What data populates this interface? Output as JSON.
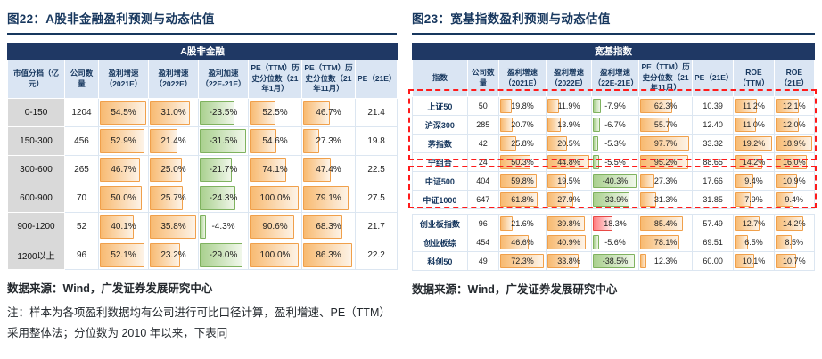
{
  "colors": {
    "navy": "#17375E",
    "table_title_bg": "#1F3864",
    "header_bg": "#DAE5F3",
    "rowhead_bg": "#D9D9D9",
    "bar_orange": "#F8BA71",
    "bar_green": "#A9D08E",
    "bar_red": "#FF7C80",
    "annotation_red": "#FF1A1A"
  },
  "left": {
    "figure_title": "图22：A股非金融盈利预测与动态估值",
    "table_title": "A股非金融",
    "columns": [
      {
        "label": "市值分档（亿元）",
        "type": "rowhead"
      },
      {
        "label": "公司数量",
        "type": "plain"
      },
      {
        "label": "盈利增速（2021E）",
        "type": "bar-orange"
      },
      {
        "label": "盈利增速（2022E）",
        "type": "bar-orange"
      },
      {
        "label": "盈利加速（22E-21E）",
        "type": "bar-accel"
      },
      {
        "label": "PE（TTM）历史分位数（21年1月）",
        "type": "bar-orange"
      },
      {
        "label": "PE（TTM）历史分位数（21年11月）",
        "type": "bar-orange"
      },
      {
        "label": "PE（21E）",
        "type": "plain"
      }
    ],
    "groups": [
      {
        "rows": [
          [
            "0-150",
            "1204",
            "54.5%",
            "31.0%",
            "-23.5%",
            "52.5%",
            "46.7%",
            "21.4"
          ],
          [
            "150-300",
            "456",
            "52.9%",
            "21.4%",
            "-31.5%",
            "54.6%",
            "27.3%",
            "19.8"
          ],
          [
            "300-600",
            "265",
            "46.7%",
            "25.0%",
            "-21.7%",
            "74.1%",
            "47.4%",
            "22.5"
          ],
          [
            "600-900",
            "70",
            "50.0%",
            "25.7%",
            "-24.3%",
            "100.0%",
            "79.1%",
            "27.5"
          ],
          [
            "900-1200",
            "52",
            "40.1%",
            "35.8%",
            "-4.3%",
            "90.6%",
            "68.3%",
            "21.7"
          ],
          [
            "1200以上",
            "96",
            "52.1%",
            "23.2%",
            "-29.0%",
            "100.0%",
            "86.3%",
            "22.2"
          ]
        ]
      }
    ],
    "source": "数据来源：Wind，广发证券发展研究中心",
    "note": "注：样本为各项盈利数据均有公司进行可比口径计算，盈利增速、PE（TTM）采用整体法；分位数为 2010 年以来，下表同"
  },
  "right": {
    "figure_title": "图23：宽基指数盈利预测与动态估值",
    "table_title": "宽基指数",
    "columns": [
      {
        "label": "指数",
        "type": "rowhead"
      },
      {
        "label": "公司数量",
        "type": "plain"
      },
      {
        "label": "盈利增速（2021E）",
        "type": "bar-orange"
      },
      {
        "label": "盈利增速（2022E）",
        "type": "bar-orange"
      },
      {
        "label": "盈利增速（22E-21E）",
        "type": "bar-accel"
      },
      {
        "label": "PE（TTM）历史分位数（21年11月）",
        "type": "bar-orange"
      },
      {
        "label": "PE（21E）",
        "type": "plain"
      },
      {
        "label": "ROE（TTM）",
        "type": "bar-orange"
      },
      {
        "label": "ROE（21E）",
        "type": "bar-orange"
      }
    ],
    "groups": [
      {
        "rows": [
          [
            "上证50",
            "50",
            "19.8%",
            "11.9%",
            "-7.9%",
            "62.3%",
            "10.39",
            "11.2%",
            "12.1%"
          ],
          [
            "沪深300",
            "285",
            "20.7%",
            "13.9%",
            "-6.7%",
            "55.7%",
            "12.40",
            "11.0%",
            "12.0%"
          ],
          [
            "茅指数",
            "42",
            "25.8%",
            "20.5%",
            "-5.3%",
            "97.7%",
            "33.32",
            "19.2%",
            "18.9%"
          ],
          [
            "宁组合",
            "24",
            "50.3%",
            "44.8%",
            "-5.5%",
            "95.2%",
            "88.65",
            "14.2%",
            "16.0%"
          ],
          [
            "中证500",
            "404",
            "59.8%",
            "19.5%",
            "-40.3%",
            "27.3%",
            "17.66",
            "9.4%",
            "10.9%"
          ],
          [
            "中证1000",
            "647",
            "61.8%",
            "27.9%",
            "-33.9%",
            "31.3%",
            "31.85",
            "7.9%",
            "9.4%"
          ]
        ]
      },
      {
        "rows": [
          [
            "创业板指数",
            "96",
            "21.6%",
            "39.8%",
            "18.3%",
            "85.4%",
            "57.49",
            "12.7%",
            "14.2%"
          ],
          [
            "创业板综",
            "454",
            "46.6%",
            "40.9%",
            "-5.6%",
            "78.1%",
            "69.51",
            "6.5%",
            "8.5%"
          ],
          [
            "科创50",
            "49",
            "72.3%",
            "33.8%",
            "-38.5%",
            "12.3%",
            "60.00",
            "10.1%",
            "10.7%"
          ]
        ]
      }
    ],
    "source": "数据来源：Wind，广发证券发展研究中心"
  }
}
